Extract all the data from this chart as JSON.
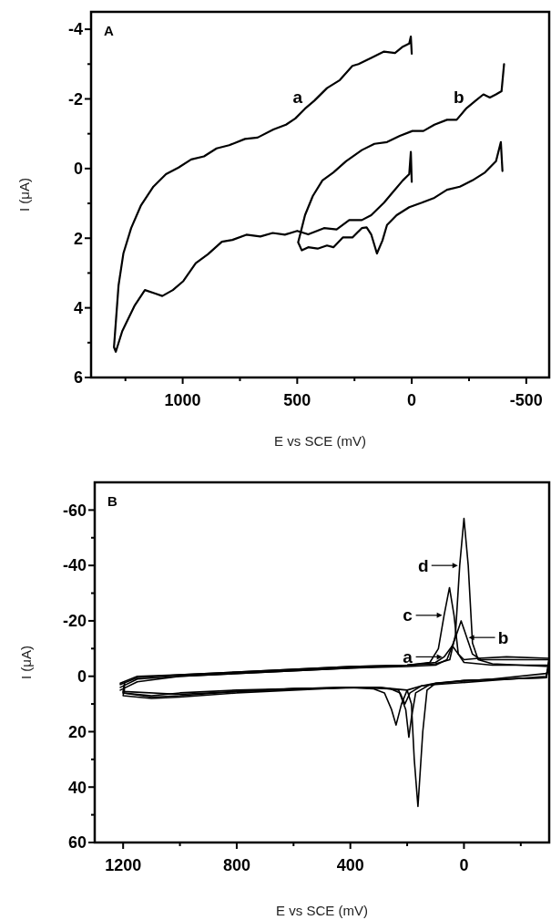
{
  "chart_data": [
    {
      "type": "line",
      "title": "A",
      "xlabel": "E vs SCE (mV)",
      "ylabel": "I (μA)",
      "xlim": [
        1400,
        -600
      ],
      "ylim": [
        6,
        -4.5
      ],
      "xticks": [
        {
          "value": 1250,
          "label": null
        },
        1000,
        {
          "value": 750,
          "label": null
        },
        500,
        {
          "value": 250,
          "label": null
        },
        0,
        {
          "value": -250,
          "label": null
        },
        -500
      ],
      "yticks": [
        -4,
        {
          "value": -3,
          "label": null
        },
        -2,
        {
          "value": -1,
          "label": null
        },
        0,
        {
          "value": 1,
          "label": null
        },
        2,
        {
          "value": 3,
          "label": null
        },
        4,
        {
          "value": 5,
          "label": null
        },
        6
      ],
      "series": [
        {
          "color": "#000000",
          "x": [
            0,
            4,
            11,
            39,
            73,
            121,
            177,
            232,
            259,
            314,
            370,
            425,
            466,
            508,
            549,
            604,
            673,
            728,
            797,
            852,
            907,
            963,
            1018,
            1073,
            1128,
            1183,
            1225,
            1259,
            1280,
            1300,
            1292,
            1264,
            1211,
            1165,
            1119,
            1089,
            1043,
            997,
            943,
            890,
            829,
            783,
            722,
            661,
            607,
            554,
            500,
            452,
            383,
            328,
            273,
            218,
            177,
            121,
            80,
            39,
            11,
            4,
            0
          ],
          "values": [
            -3.3,
            -3.79,
            -3.59,
            -3.5,
            -3.32,
            -3.36,
            -3.18,
            -3,
            -2.95,
            -2.54,
            -2.31,
            -1.95,
            -1.72,
            -1.44,
            -1.26,
            -1.12,
            -0.89,
            -0.85,
            -0.67,
            -0.58,
            -0.35,
            -0.26,
            -0.03,
            0.16,
            0.52,
            1.07,
            1.71,
            2.44,
            3.35,
            5.13,
            5.26,
            4.67,
            3.95,
            3.49,
            3.59,
            3.66,
            3.49,
            3.23,
            2.72,
            2.46,
            2.1,
            2.05,
            1.9,
            1.95,
            1.85,
            1.9,
            1.79,
            1.89,
            1.71,
            1.75,
            1.48,
            1.48,
            1.34,
            0.98,
            0.66,
            0.34,
            0.16,
            -0.48,
            0.38
          ]
        },
        {
          "color": "#000000",
          "x": [
            -403,
            -392,
            -368,
            -341,
            -313,
            -279,
            -237,
            -196,
            -154,
            -99,
            -51,
            -3,
            52,
            108,
            163,
            218,
            287,
            342,
            390,
            432,
            466,
            487,
            496,
            480,
            452,
            411,
            370,
            342,
            301,
            259,
            218,
            197,
            177,
            152,
            128,
            108,
            66,
            11,
            -44,
            -99,
            -154,
            -210,
            -265,
            -320,
            -368,
            -389,
            -396
          ],
          "values": [
            -3,
            -2.22,
            -2.13,
            -2.04,
            -2.13,
            -1.95,
            -1.72,
            -1.4,
            -1.4,
            -1.26,
            -1.08,
            -1.08,
            -0.94,
            -0.76,
            -0.71,
            -0.53,
            -0.21,
            0.11,
            0.34,
            0.79,
            1.34,
            1.89,
            2.12,
            2.35,
            2.26,
            2.3,
            2.21,
            2.26,
            1.98,
            1.98,
            1.71,
            1.69,
            1.89,
            2.44,
            2.07,
            1.62,
            1.34,
            1.11,
            0.98,
            0.84,
            0.61,
            0.52,
            0.34,
            0.11,
            -0.21,
            -0.76,
            0.07
          ]
        }
      ],
      "annotations": [
        {
          "text": "a",
          "x": 466,
          "y": -1.72
        },
        {
          "text": "b",
          "x": -237,
          "y": -1.72
        }
      ]
    },
    {
      "type": "line",
      "title": "B",
      "xlabel": "E vs SCE (mV)",
      "ylabel": "I (μA)",
      "xlim": [
        1300,
        -300
      ],
      "ylim": [
        60,
        -70
      ],
      "xticks": [
        1200,
        {
          "value": 1000,
          "label": null
        },
        800,
        {
          "value": 600,
          "label": null
        },
        400,
        {
          "value": 200,
          "label": null
        },
        0,
        {
          "value": -200,
          "label": null
        }
      ],
      "yticks": [
        -60,
        {
          "value": -50,
          "label": null
        },
        -40,
        {
          "value": -30,
          "label": null
        },
        -20,
        {
          "value": -10,
          "label": null
        },
        0,
        {
          "value": 10,
          "label": null
        },
        20,
        {
          "value": 30,
          "label": null
        },
        40,
        {
          "value": 50,
          "label": null
        },
        60
      ],
      "series": [
        {
          "color": "#000000",
          "x": [
            1210,
            1150,
            1000,
            800,
            600,
            400,
            200,
            100,
            70,
            41,
            20,
            0,
            -50,
            -150,
            -300,
            -290,
            0,
            100,
            150,
            190,
            208,
            225,
            260,
            400,
            600,
            800,
            1000,
            1200,
            1195
          ],
          "values": [
            2.5,
            0,
            -0.5,
            -1.5,
            -2.5,
            -3.5,
            -4,
            -5,
            -7,
            -11,
            -8,
            -6,
            -6.5,
            -7,
            -6.5,
            0.5,
            1.5,
            2.5,
            3.5,
            6,
            10,
            6,
            4.5,
            4,
            4.5,
            5.5,
            6.5,
            5.5,
            2.5
          ]
        },
        {
          "color": "#000000",
          "x": [
            1210,
            1150,
            1000,
            800,
            600,
            400,
            200,
            100,
            60,
            30,
            10,
            -10,
            -30,
            -60,
            -150,
            -300,
            -290,
            0,
            120,
            170,
            185,
            194,
            205,
            230,
            300,
            600,
            800,
            1000,
            1100,
            1200,
            1195
          ],
          "values": [
            5,
            2,
            0,
            -1,
            -2,
            -3,
            -3.5,
            -4,
            -6,
            -14,
            -20,
            -14,
            -8,
            -6,
            -6,
            -6,
            0.5,
            1.5,
            3,
            6,
            15,
            22,
            12,
            5,
            4,
            4.5,
            5.5,
            7,
            7.5,
            6,
            5
          ]
        },
        {
          "color": "#000000",
          "x": [
            1210,
            1150,
            1000,
            800,
            600,
            400,
            200,
            120,
            90,
            70,
            51,
            35,
            20,
            0,
            -100,
            -300,
            -290,
            -100,
            100,
            150,
            200,
            220,
            239,
            255,
            280,
            320,
            400,
            600,
            800,
            1000,
            1100,
            1200,
            1195
          ],
          "values": [
            4,
            1,
            0,
            -1,
            -2,
            -3,
            -4,
            -5,
            -10,
            -22,
            -32,
            -22,
            -8,
            -5,
            -4,
            -4,
            0,
            1.5,
            3,
            3.5,
            5,
            10,
            17.6,
            12,
            6,
            4.5,
            4,
            5,
            6,
            7.5,
            8,
            7,
            4
          ]
        },
        {
          "color": "#000000",
          "x": [
            1210,
            1150,
            1000,
            800,
            600,
            400,
            200,
            100,
            50,
            30,
            15,
            0,
            -15,
            -30,
            -50,
            -100,
            -200,
            -300,
            -290,
            -100,
            100,
            130,
            145,
            162,
            175,
            185,
            200,
            300,
            400,
            600,
            800,
            1000,
            1100,
            1200,
            1195
          ],
          "values": [
            3,
            0.5,
            -0.5,
            -1.5,
            -2.5,
            -3.5,
            -4,
            -4.5,
            -6,
            -15,
            -40,
            -57,
            -40,
            -12,
            -6,
            -4.5,
            -4,
            -3.5,
            -1,
            1,
            2.5,
            5,
            20,
            47,
            30,
            10,
            5,
            4,
            4,
            4.5,
            5,
            6,
            7,
            6,
            3
          ]
        }
      ],
      "annotations": [
        {
          "text": "d",
          "x": 15,
          "y": -40
        },
        {
          "text": "c",
          "x": 70,
          "y": -22
        },
        {
          "text": "b",
          "x": -10,
          "y": -14
        },
        {
          "text": "a",
          "x": 70,
          "y": -7
        }
      ]
    }
  ]
}
